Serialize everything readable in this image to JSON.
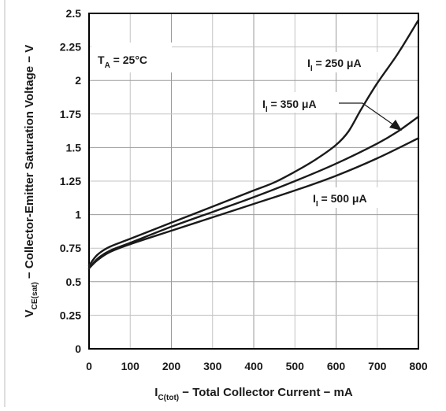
{
  "chart_data": {
    "type": "line",
    "xlabel": {
      "main": "I",
      "sub": "C(tot)",
      "rest": " − Total Collector Current − mA"
    },
    "ylabel": {
      "main": "V",
      "sub": "CE(sat)",
      "rest": " − Collector-Emitter Saturation Voltage − V"
    },
    "xlim": [
      0,
      800
    ],
    "ylim": [
      0,
      2.5
    ],
    "xticks": [
      0,
      100,
      200,
      300,
      400,
      500,
      600,
      700,
      800
    ],
    "xtick_labels": [
      "0",
      "100",
      "200",
      "300",
      "400",
      "500",
      "600",
      "700",
      "800"
    ],
    "yticks": [
      0,
      0.25,
      0.5,
      0.75,
      1,
      1.25,
      1.5,
      1.75,
      2,
      2.25,
      2.5
    ],
    "ytick_labels": [
      "0",
      "0.25",
      "0.5",
      "0.75",
      "1",
      "1.25",
      "1.5",
      "1.75",
      "2",
      "2.25",
      "2.5"
    ],
    "grid": true,
    "annotations": {
      "temperature": {
        "main": "T",
        "sub": "A",
        "rest": " = 25°C"
      },
      "series_labels": [
        {
          "main": "I",
          "sub": "I",
          "rest": " = 250 μA"
        },
        {
          "main": "I",
          "sub": "I",
          "rest": " = 350 μA"
        },
        {
          "main": "I",
          "sub": "I",
          "rest": " = 500 μA"
        }
      ]
    },
    "series": [
      {
        "name": "II = 250 μA",
        "points": [
          [
            0,
            0.62
          ],
          [
            20,
            0.7
          ],
          [
            50,
            0.76
          ],
          [
            100,
            0.82
          ],
          [
            200,
            0.94
          ],
          [
            300,
            1.06
          ],
          [
            400,
            1.18
          ],
          [
            450,
            1.24
          ],
          [
            500,
            1.32
          ],
          [
            550,
            1.41
          ],
          [
            600,
            1.52
          ],
          [
            630,
            1.62
          ],
          [
            660,
            1.78
          ],
          [
            700,
            1.98
          ],
          [
            750,
            2.2
          ],
          [
            800,
            2.45
          ]
        ]
      },
      {
        "name": "II = 350 μA",
        "points": [
          [
            0,
            0.6
          ],
          [
            20,
            0.67
          ],
          [
            50,
            0.73
          ],
          [
            100,
            0.79
          ],
          [
            200,
            0.91
          ],
          [
            300,
            1.02
          ],
          [
            400,
            1.13
          ],
          [
            500,
            1.25
          ],
          [
            600,
            1.38
          ],
          [
            700,
            1.53
          ],
          [
            750,
            1.62
          ],
          [
            800,
            1.73
          ]
        ]
      },
      {
        "name": "II = 500 μA",
        "points": [
          [
            0,
            0.6
          ],
          [
            20,
            0.66
          ],
          [
            50,
            0.72
          ],
          [
            100,
            0.78
          ],
          [
            200,
            0.88
          ],
          [
            300,
            0.98
          ],
          [
            400,
            1.08
          ],
          [
            500,
            1.18
          ],
          [
            600,
            1.29
          ],
          [
            700,
            1.42
          ],
          [
            800,
            1.57
          ]
        ]
      }
    ]
  }
}
